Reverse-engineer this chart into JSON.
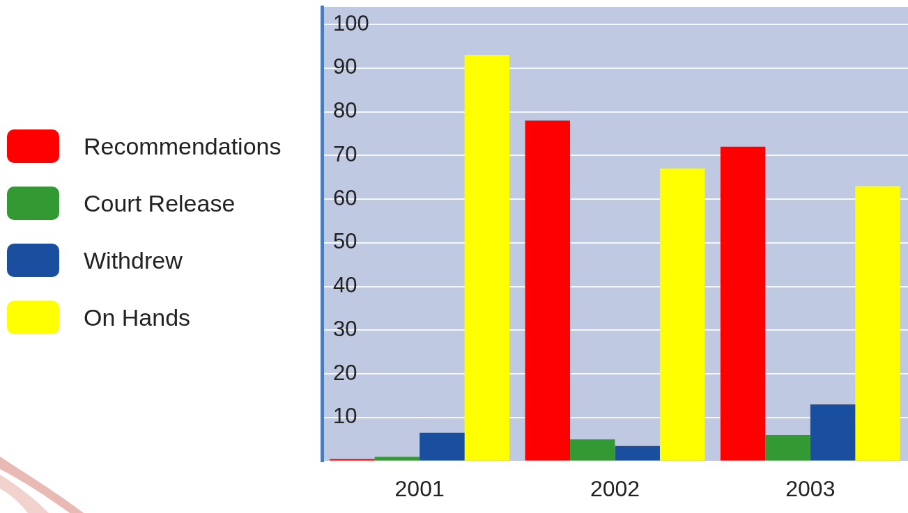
{
  "chart_data": {
    "type": "bar",
    "categories": [
      "2001",
      "2002",
      "2003"
    ],
    "series": [
      {
        "name": "Recommendations",
        "color": "#ff0000",
        "values": [
          0.5,
          78,
          72
        ]
      },
      {
        "name": "Court Release",
        "color": "#339933",
        "values": [
          1,
          5,
          6
        ]
      },
      {
        "name": "Withdrew",
        "color": "#1a4fa0",
        "values": [
          6.5,
          3.5,
          13
        ]
      },
      {
        "name": "On Hands",
        "color": "#ffff00",
        "values": [
          93,
          67,
          63
        ]
      }
    ],
    "ylim": [
      0,
      104
    ],
    "yticks": [
      {
        "value": 0,
        "label": null
      },
      10,
      20,
      30,
      40,
      50,
      60,
      70,
      80,
      90,
      100
    ],
    "grid": "y",
    "legend": "left"
  }
}
